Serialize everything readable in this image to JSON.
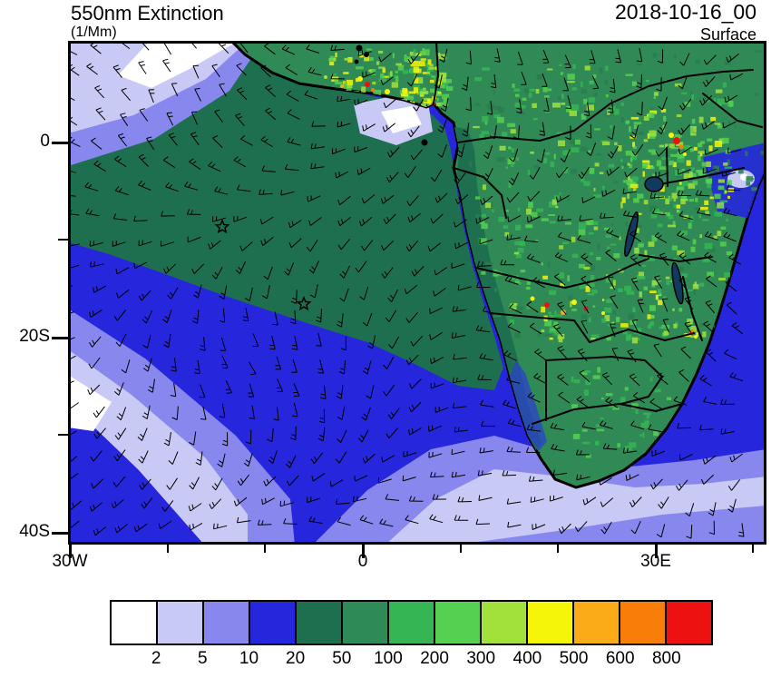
{
  "header": {
    "title": "550nm Extinction",
    "units": "(1/Mm)",
    "datetime": "2018-10-16_00",
    "level": "Surface"
  },
  "axes": {
    "y_labels": [
      "0",
      "20S",
      "40S"
    ],
    "x_labels": [
      "30W",
      "0",
      "30E"
    ]
  },
  "colorbar": {
    "levels": [
      "2",
      "5",
      "10",
      "20",
      "50",
      "100",
      "200",
      "300",
      "400",
      "500",
      "600",
      "800"
    ],
    "colors": [
      "#ffffff",
      "#c9c9f6",
      "#8787ee",
      "#2626dd",
      "#1e6f4f",
      "#2e8b57",
      "#35b554",
      "#55d050",
      "#a2e03c",
      "#f5f50a",
      "#fbab18",
      "#f87d09",
      "#ee1111"
    ]
  },
  "chart_data": {
    "type": "heatmap",
    "title": "550nm Extinction",
    "units": "1/Mm",
    "datetime": "2018-10-16_00",
    "level": "Surface",
    "x_ticks": [
      "30W",
      "0",
      "30E"
    ],
    "y_ticks": [
      "0",
      "20S",
      "40S"
    ],
    "color_levels": [
      2,
      5,
      10,
      20,
      50,
      100,
      200,
      300,
      400,
      500,
      600,
      800
    ],
    "palette": [
      "#ffffff",
      "#c9c9f6",
      "#8787ee",
      "#2626dd",
      "#1e6f4f",
      "#2e8b57",
      "#35b554",
      "#55d050",
      "#a2e03c",
      "#f5f50a",
      "#fbab18",
      "#f87d09",
      "#ee1111"
    ],
    "overlays": [
      "surface wind barbs",
      "coastlines",
      "country borders",
      "two star markers",
      "island point marker"
    ],
    "field_summary": [
      {
        "region": "Smoke plume over Gulf of Guinea and SE Atlantic off Gabon-Angola coast",
        "value_range_1_per_Mm": [
          50,
          100
        ]
      },
      {
        "region": "Open central South Atlantic",
        "value_range_1_per_Mm": [
          20,
          50
        ]
      },
      {
        "region": "Far southwest ocean, southern ocean bands and NW corner",
        "value_range_1_per_Mm": [
          2,
          20
        ]
      },
      {
        "region": "Congo basin and East African land areas",
        "value_range_1_per_Mm": [
          100,
          400
        ]
      },
      {
        "region": "Fire hotspots: Nigeria-Benin coast, Angola-DRC belt, East African rift",
        "value_range_1_per_Mm": [
          500,
          800
        ]
      }
    ]
  }
}
